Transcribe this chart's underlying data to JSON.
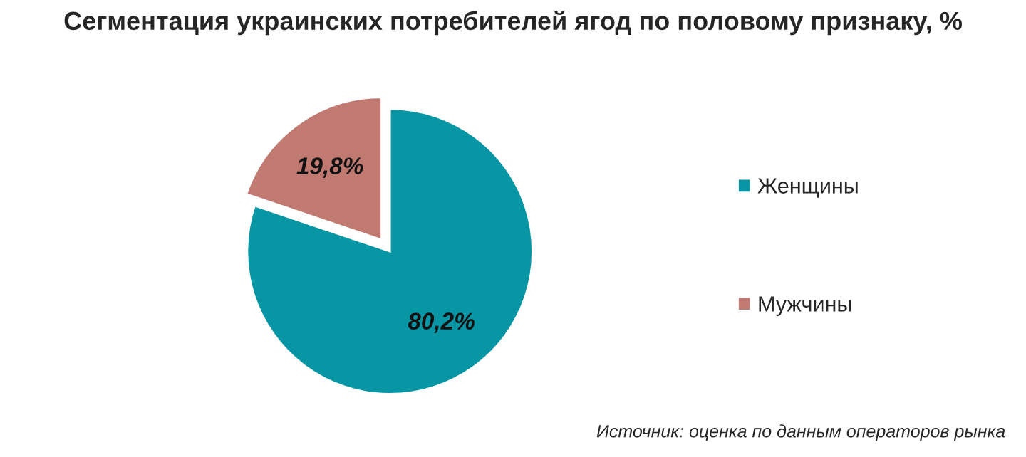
{
  "chart_data": {
    "type": "pie",
    "title": "Сегментация украинских потребителей ягод по половому признаку, %",
    "categories": [
      "Женщины",
      "Мужчины"
    ],
    "values": [
      80.2,
      19.8
    ],
    "value_labels": [
      "80,2%",
      "19,8%"
    ],
    "colors": [
      "#0896a4",
      "#c07a72"
    ],
    "legend": "right",
    "annotations": [
      "Источник: оценка по данным операторов рынка"
    ]
  }
}
